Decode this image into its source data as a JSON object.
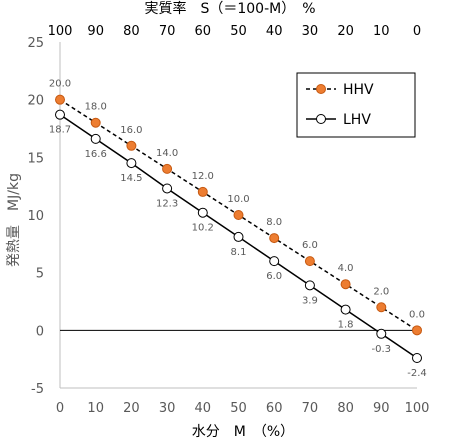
{
  "chart_data": {
    "type": "line",
    "x": [
      0,
      10,
      20,
      30,
      40,
      50,
      60,
      70,
      80,
      90,
      100
    ],
    "x_ticks": [
      "0",
      "10",
      "20",
      "30",
      "40",
      "50",
      "60",
      "70",
      "80",
      "90",
      "100"
    ],
    "x_top_ticks": [
      "100",
      "90",
      "80",
      "70",
      "60",
      "50",
      "40",
      "30",
      "20",
      "10",
      "0"
    ],
    "y_ticks": [
      "-5",
      "0",
      "5",
      "10",
      "15",
      "20",
      "25"
    ],
    "xlabel": "水分　M　（%）",
    "x2label": "実質率　S（＝100-M）　%",
    "ylabel": "発熱量　MJ/kg",
    "xlim": [
      0,
      100
    ],
    "ylim": [
      -5,
      25
    ],
    "grid": false,
    "legend_position": "top-right",
    "series": [
      {
        "name": "HHV",
        "color": "#ED7D31",
        "line_style": "dashed",
        "marker": "filled-circle",
        "values": [
          20.0,
          18.0,
          16.0,
          14.0,
          12.0,
          10.0,
          8.0,
          6.0,
          4.0,
          2.0,
          0.0
        ],
        "labels": [
          "20.0",
          "18.0",
          "16.0",
          "14.0",
          "12.0",
          "10.0",
          "8.0",
          "6.0",
          "4.0",
          "2.0",
          "0.0"
        ]
      },
      {
        "name": "LHV",
        "color": "#000000",
        "line_style": "solid",
        "marker": "open-circle",
        "values": [
          18.7,
          16.6,
          14.5,
          12.3,
          10.2,
          8.1,
          6.0,
          3.9,
          1.8,
          -0.3,
          -2.4
        ],
        "labels": [
          "18.7",
          "16.6",
          "14.5",
          "12.3",
          "10.2",
          "8.1",
          "6.0",
          "3.9",
          "1.8",
          "-0.3",
          "-2.4"
        ]
      }
    ]
  }
}
